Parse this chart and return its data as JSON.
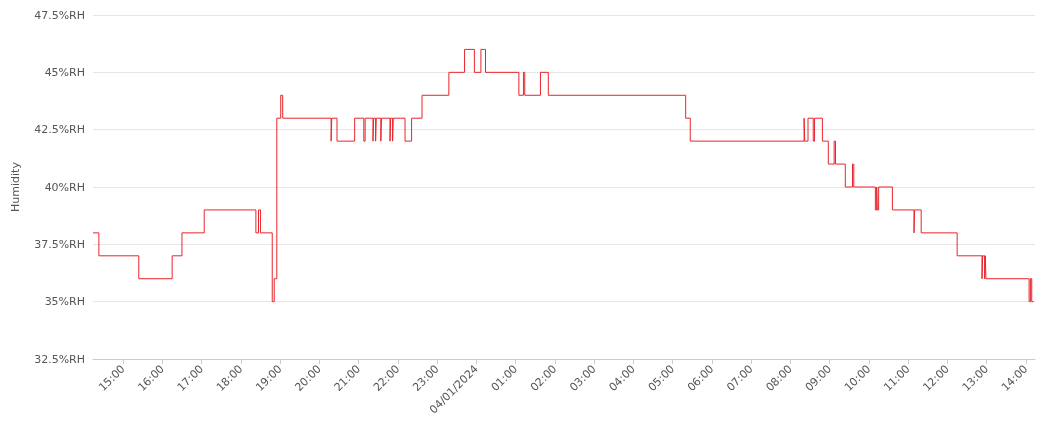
{
  "chart_data": {
    "type": "step",
    "ylabel": "Humidity",
    "grid": "y",
    "marker": "none",
    "line_style": "solid",
    "xlim": [
      "2024-03-31T14:14",
      "2024-04-01T14:14"
    ],
    "xticks": [
      {
        "value": "2024-03-31T15:00",
        "label": "15:00"
      },
      {
        "value": "2024-03-31T16:00",
        "label": "16:00"
      },
      {
        "value": "2024-03-31T17:00",
        "label": "17:00"
      },
      {
        "value": "2024-03-31T18:00",
        "label": "18:00"
      },
      {
        "value": "2024-03-31T19:00",
        "label": "19:00"
      },
      {
        "value": "2024-03-31T20:00",
        "label": "20:00"
      },
      {
        "value": "2024-03-31T21:00",
        "label": "21:00"
      },
      {
        "value": "2024-03-31T22:00",
        "label": "22:00"
      },
      {
        "value": "2024-03-31T23:00",
        "label": "23:00"
      },
      {
        "value": "2024-04-01T00:00",
        "label": "04/01/2024"
      },
      {
        "value": "2024-04-01T01:00",
        "label": "01:00"
      },
      {
        "value": "2024-04-01T02:00",
        "label": "02:00"
      },
      {
        "value": "2024-04-01T03:00",
        "label": "03:00"
      },
      {
        "value": "2024-04-01T04:00",
        "label": "04:00"
      },
      {
        "value": "2024-04-01T05:00",
        "label": "05:00"
      },
      {
        "value": "2024-04-01T06:00",
        "label": "06:00"
      },
      {
        "value": "2024-04-01T07:00",
        "label": "07:00"
      },
      {
        "value": "2024-04-01T08:00",
        "label": "08:00"
      },
      {
        "value": "2024-04-01T09:00",
        "label": "09:00"
      },
      {
        "value": "2024-04-01T10:00",
        "label": "10:00"
      },
      {
        "value": "2024-04-01T11:00",
        "label": "11:00"
      },
      {
        "value": "2024-04-01T12:00",
        "label": "12:00"
      },
      {
        "value": "2024-04-01T13:00",
        "label": "13:00"
      },
      {
        "value": "2024-04-01T14:00",
        "label": "14:00"
      }
    ],
    "ylim": [
      32.5,
      47.5
    ],
    "yticks": [
      {
        "value": 32.5,
        "label": "32.5%RH"
      },
      {
        "value": 35,
        "label": "35%RH"
      },
      {
        "value": 37.5,
        "label": "37.5%RH"
      },
      {
        "value": 40,
        "label": "40%RH"
      },
      {
        "value": 42.5,
        "label": "42.5%RH"
      },
      {
        "value": 45,
        "label": "45%RH"
      },
      {
        "value": 47.5,
        "label": "47.5%RH"
      }
    ],
    "series": [
      {
        "color": "#e8252b",
        "x": [
          "2024-03-31T14:14",
          "2024-03-31T14:23",
          "2024-03-31T15:24",
          "2024-03-31T16:15",
          "2024-03-31T16:30",
          "2024-03-31T17:04",
          "2024-03-31T18:23",
          "2024-03-31T18:27",
          "2024-03-31T18:30",
          "2024-03-31T18:48",
          "2024-03-31T18:51",
          "2024-03-31T18:55",
          "2024-03-31T19:01",
          "2024-03-31T19:04",
          "2024-03-31T20:18",
          "2024-03-31T20:19",
          "2024-03-31T20:27",
          "2024-03-31T20:54",
          "2024-03-31T21:08",
          "2024-03-31T21:10",
          "2024-03-31T21:22",
          "2024-03-31T21:23",
          "2024-03-31T21:26",
          "2024-03-31T21:27",
          "2024-03-31T21:34",
          "2024-03-31T21:35",
          "2024-03-31T21:48",
          "2024-03-31T21:49",
          "2024-03-31T21:52",
          "2024-03-31T21:53",
          "2024-03-31T22:11",
          "2024-03-31T22:21",
          "2024-03-31T22:37",
          "2024-03-31T23:18",
          "2024-03-31T23:42",
          "2024-03-31T23:57",
          "2024-04-01T00:07",
          "2024-04-01T00:14",
          "2024-04-01T01:05",
          "2024-04-01T01:12",
          "2024-04-01T01:14",
          "2024-04-01T01:38",
          "2024-04-01T01:50",
          "2024-04-01T05:20",
          "2024-04-01T05:27",
          "2024-04-01T08:21",
          "2024-04-01T08:22",
          "2024-04-01T08:27",
          "2024-04-01T08:35",
          "2024-04-01T08:37",
          "2024-04-01T08:49",
          "2024-04-01T08:58",
          "2024-04-01T09:07",
          "2024-04-01T09:09",
          "2024-04-01T09:24",
          "2024-04-01T09:35",
          "2024-04-01T09:37",
          "2024-04-01T10:10",
          "2024-04-01T10:12",
          "2024-04-01T10:13",
          "2024-04-01T10:15",
          "2024-04-01T10:36",
          "2024-04-01T11:09",
          "2024-04-01T11:10",
          "2024-04-01T11:20",
          "2024-04-01T12:15",
          "2024-04-01T12:53",
          "2024-04-01T12:54",
          "2024-04-01T12:57",
          "2024-04-01T12:58",
          "2024-04-01T12:59",
          "2024-04-01T14:05",
          "2024-04-01T14:07",
          "2024-04-01T14:09",
          "2024-04-01T14:12"
        ],
        "values": [
          38,
          37,
          36,
          37,
          38,
          39,
          38,
          39,
          38,
          35,
          36,
          43,
          44,
          43,
          42,
          43,
          42,
          43,
          42,
          43,
          42,
          43,
          42,
          43,
          42,
          43,
          42,
          43,
          42,
          43,
          42,
          43,
          44,
          45,
          46,
          45,
          46,
          45,
          44,
          45,
          44,
          45,
          44,
          43,
          42,
          43,
          42,
          43,
          42,
          43,
          42,
          41,
          42,
          41,
          40,
          41,
          40,
          39,
          40,
          39,
          40,
          39,
          38,
          39,
          38,
          37,
          36,
          37,
          36,
          37,
          36,
          35,
          36,
          35,
          35
        ]
      }
    ]
  }
}
